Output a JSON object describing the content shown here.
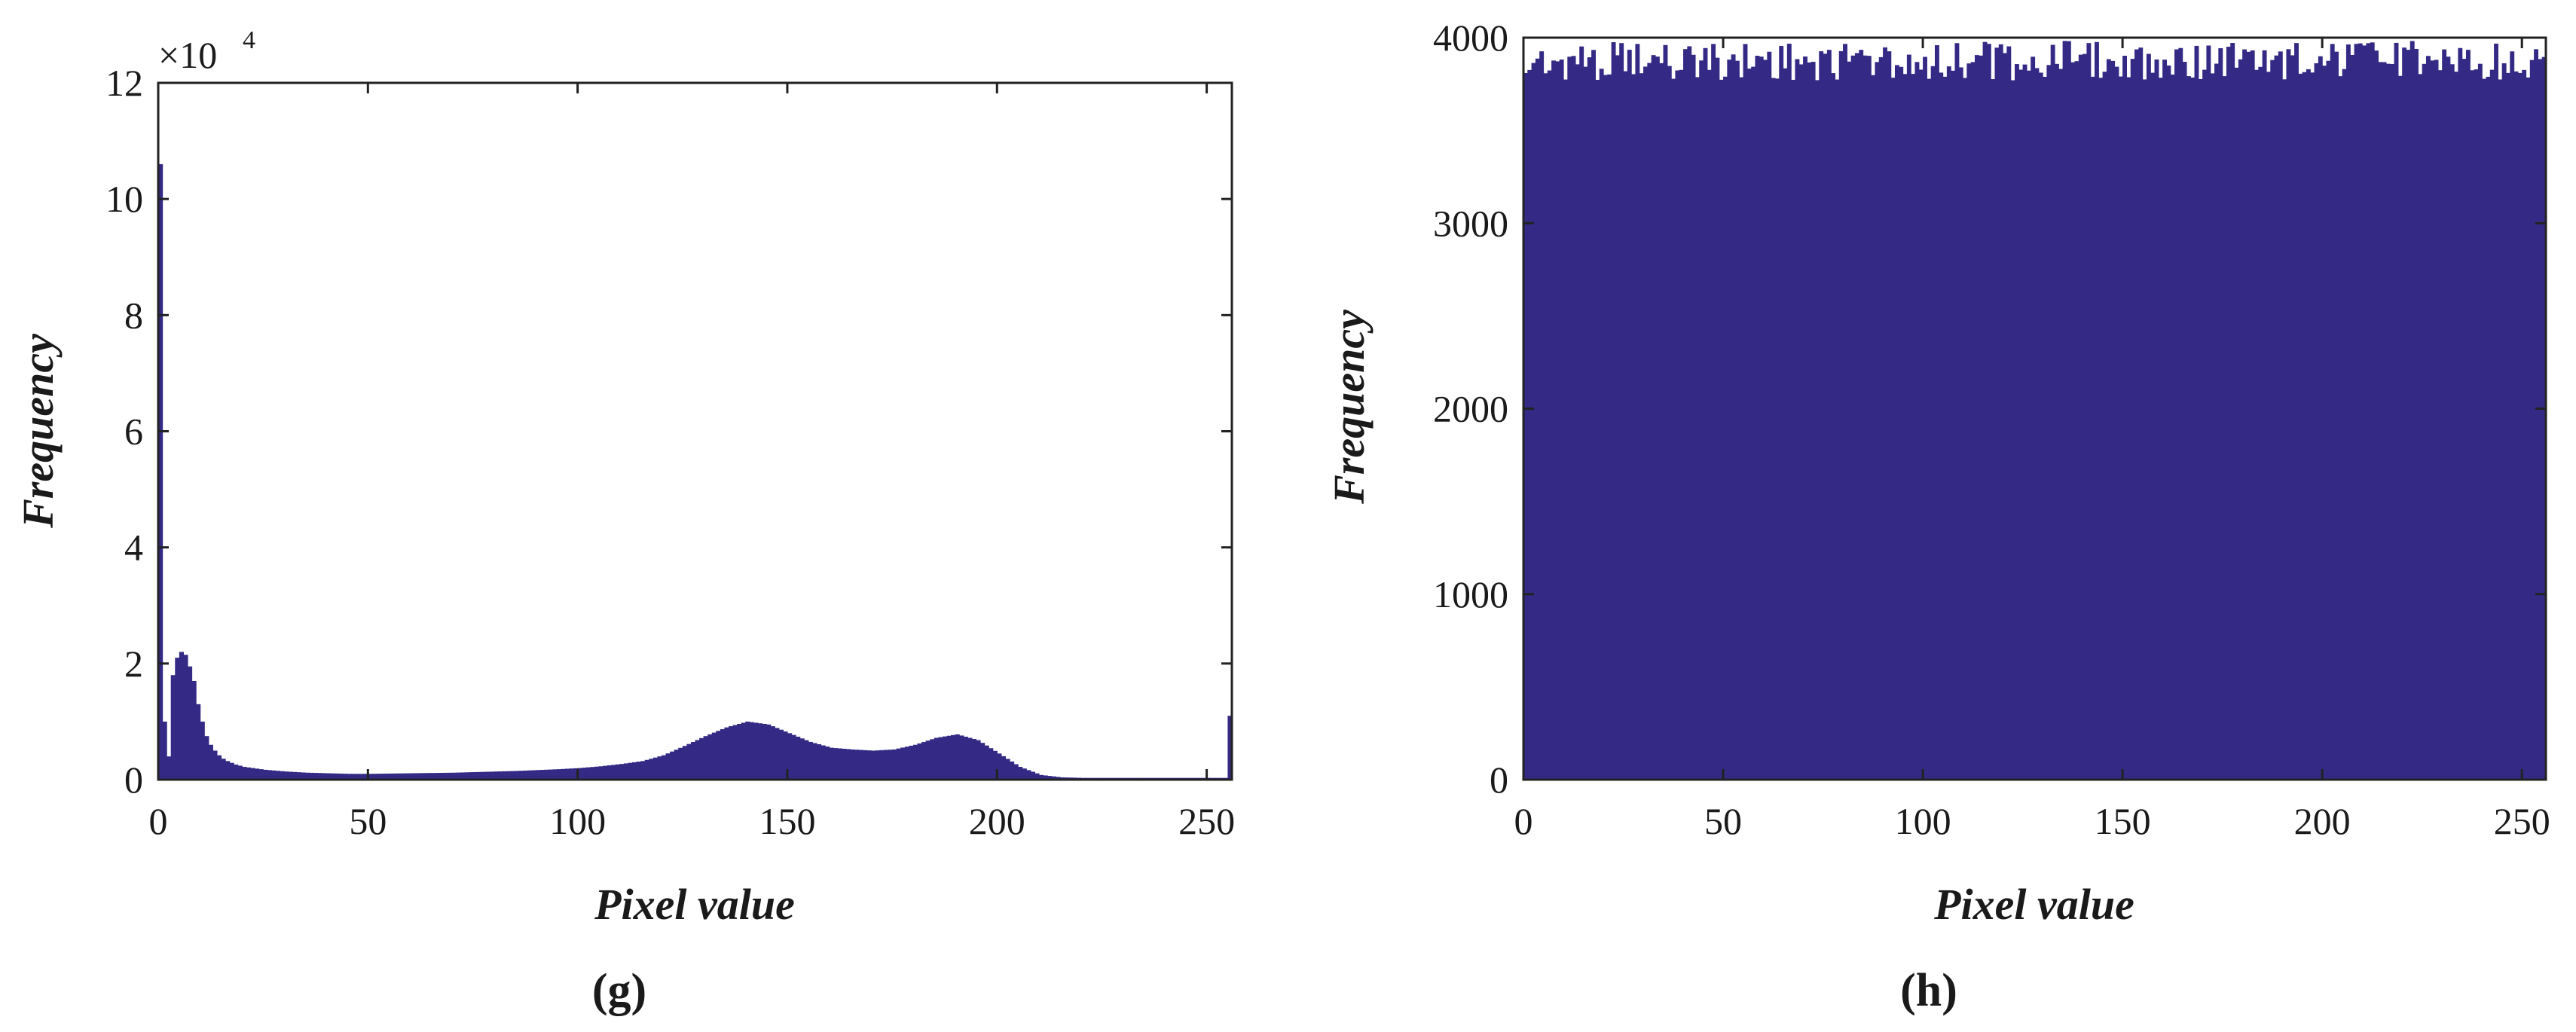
{
  "colors": {
    "bar": "#342A85",
    "axes": "#222222",
    "background": "#ffffff"
  },
  "chart_data": [
    {
      "type": "bar",
      "panel_label": "(g)",
      "xlabel": "Pixel value",
      "ylabel": "Frequency",
      "xlim": [
        0,
        256
      ],
      "ylim": [
        0,
        120000
      ],
      "x_ticks": [
        0,
        50,
        100,
        150,
        200,
        250
      ],
      "y_ticks": [
        0,
        20000,
        40000,
        60000,
        80000,
        100000,
        120000
      ],
      "y_tick_labels": [
        "0",
        "2",
        "4",
        "6",
        "8",
        "10",
        "12"
      ],
      "y_multiplier": {
        "base": "×10",
        "exponent": "4"
      },
      "grid": false,
      "x": [
        0,
        1,
        2,
        3,
        4,
        5,
        6,
        7,
        8,
        9,
        10,
        11,
        12,
        13,
        14,
        15,
        16,
        17,
        18,
        19,
        20,
        25,
        30,
        35,
        40,
        45,
        50,
        55,
        60,
        65,
        70,
        75,
        80,
        85,
        90,
        95,
        100,
        105,
        110,
        115,
        120,
        125,
        130,
        135,
        140,
        145,
        150,
        155,
        160,
        165,
        170,
        175,
        180,
        185,
        190,
        195,
        200,
        205,
        210,
        215,
        220,
        225,
        230,
        235,
        240,
        245,
        250,
        254,
        255
      ],
      "values": [
        106000,
        10000,
        4000,
        18000,
        21000,
        22000,
        21500,
        19500,
        17000,
        13000,
        10000,
        7500,
        6000,
        5000,
        4200,
        3600,
        3200,
        2900,
        2600,
        2400,
        2200,
        1700,
        1400,
        1200,
        1100,
        1000,
        1000,
        1050,
        1100,
        1150,
        1200,
        1300,
        1400,
        1500,
        1650,
        1800,
        2000,
        2300,
        2700,
        3200,
        4200,
        5800,
        7500,
        9000,
        10000,
        9500,
        8000,
        6500,
        5500,
        5200,
        5000,
        5200,
        6000,
        7200,
        7800,
        6800,
        4500,
        2200,
        800,
        400,
        300,
        300,
        300,
        300,
        300,
        300,
        300,
        300,
        11000
      ]
    },
    {
      "type": "bar",
      "panel_label": "(h)",
      "xlabel": "Pixel value",
      "ylabel": "Frequency",
      "xlim": [
        0,
        256
      ],
      "ylim": [
        0,
        4000
      ],
      "x_ticks": [
        0,
        50,
        100,
        150,
        200,
        250
      ],
      "y_ticks": [
        0,
        1000,
        2000,
        3000,
        4000
      ],
      "y_tick_labels": [
        "0",
        "1000",
        "2000",
        "3000",
        "4000"
      ],
      "grid": false,
      "x": [
        0,
        256
      ],
      "values": [
        3880,
        3880
      ],
      "values_min": 3770,
      "values_max": 3985
    }
  ]
}
